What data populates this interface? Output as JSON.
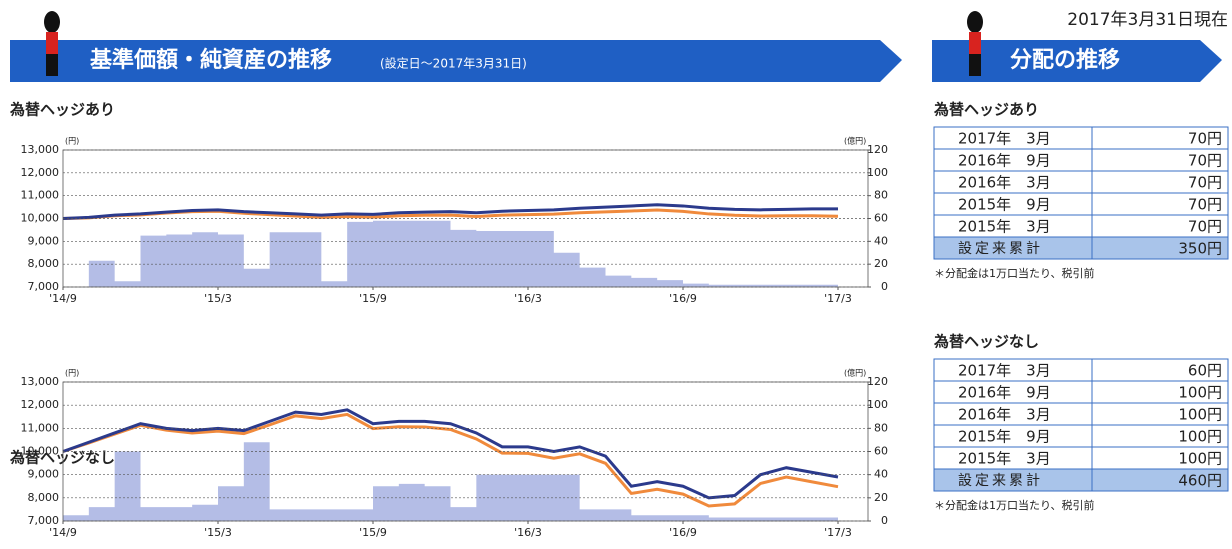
{
  "header": {
    "title": "基準価額・純資産の推移",
    "period": "(設定日～2017年3月31日)",
    "as_of": "2017年3月31日現在",
    "dist_title": "分配の推移"
  },
  "chart_data": [
    {
      "type": "line",
      "title": "為替ヘッジあり",
      "y_unit": "(円)",
      "y2_unit": "(億円)",
      "x": [
        "2014-09",
        "2014-10",
        "2014-11",
        "2014-12",
        "2015-01",
        "2015-02",
        "2015-03",
        "2015-04",
        "2015-05",
        "2015-06",
        "2015-07",
        "2015-08",
        "2015-09",
        "2015-10",
        "2015-11",
        "2015-12",
        "2016-01",
        "2016-02",
        "2016-03",
        "2016-04",
        "2016-05",
        "2016-06",
        "2016-07",
        "2016-08",
        "2016-09",
        "2016-10",
        "2016-11",
        "2016-12",
        "2017-01",
        "2017-02",
        "2017-03"
      ],
      "xticks": [
        {
          "value": "2014-09",
          "label": "'14/9"
        },
        {
          "value": "2015-03",
          "label": "'15/3"
        },
        {
          "value": "2015-09",
          "label": "'15/9"
        },
        {
          "value": "2016-03",
          "label": "'16/3"
        },
        {
          "value": "2016-09",
          "label": "'16/9"
        },
        {
          "value": "2017-03",
          "label": "'17/3"
        }
      ],
      "ylim": [
        7000,
        13000
      ],
      "yticks": [
        {
          "value": 7000,
          "label": "7,000"
        },
        {
          "value": 8000,
          "label": "8,000"
        },
        {
          "value": 9000,
          "label": "9,000"
        },
        {
          "value": 10000,
          "label": "10,000"
        },
        {
          "value": 11000,
          "label": "11,000"
        },
        {
          "value": 12000,
          "label": "12,000"
        },
        {
          "value": 13000,
          "label": "13,000"
        }
      ],
      "y2lim": [
        0,
        120
      ],
      "y2ticks": [
        0,
        20,
        40,
        60,
        80,
        100,
        120
      ],
      "grid": true,
      "series": [
        {
          "color": "#b4bde6",
          "axis": "y2",
          "values": [
            0,
            23,
            5,
            45,
            46,
            48,
            46,
            16,
            48,
            48,
            5,
            57,
            58,
            58,
            58,
            50,
            49,
            49,
            49,
            30,
            17,
            10,
            8,
            6,
            3,
            2,
            2,
            2,
            2,
            2,
            2
          ]
        },
        {
          "color": "#f08a3c",
          "values": [
            10000,
            10030,
            10120,
            10160,
            10240,
            10300,
            10320,
            10230,
            10170,
            10110,
            10050,
            10090,
            10060,
            10120,
            10140,
            10150,
            10090,
            10150,
            10170,
            10190,
            10250,
            10290,
            10330,
            10370,
            10310,
            10200,
            10140,
            10110,
            10120,
            10120,
            10100
          ]
        },
        {
          "color": "#2b3a8c",
          "values": [
            10000,
            10050,
            10150,
            10200,
            10280,
            10350,
            10380,
            10300,
            10250,
            10200,
            10150,
            10200,
            10180,
            10250,
            10280,
            10300,
            10250,
            10320,
            10350,
            10380,
            10450,
            10500,
            10550,
            10600,
            10550,
            10450,
            10400,
            10380,
            10400,
            10420,
            10420
          ]
        }
      ]
    },
    {
      "type": "line",
      "title": "為替ヘッジなし",
      "y_unit": "(円)",
      "y2_unit": "(億円)",
      "x": [
        "2014-09",
        "2014-10",
        "2014-11",
        "2014-12",
        "2015-01",
        "2015-02",
        "2015-03",
        "2015-04",
        "2015-05",
        "2015-06",
        "2015-07",
        "2015-08",
        "2015-09",
        "2015-10",
        "2015-11",
        "2015-12",
        "2016-01",
        "2016-02",
        "2016-03",
        "2016-04",
        "2016-05",
        "2016-06",
        "2016-07",
        "2016-08",
        "2016-09",
        "2016-10",
        "2016-11",
        "2016-12",
        "2017-01",
        "2017-02",
        "2017-03"
      ],
      "xticks": [
        {
          "value": "2014-09",
          "label": "'14/9"
        },
        {
          "value": "2015-03",
          "label": "'15/3"
        },
        {
          "value": "2015-09",
          "label": "'15/9"
        },
        {
          "value": "2016-03",
          "label": "'16/3"
        },
        {
          "value": "2016-09",
          "label": "'16/9"
        },
        {
          "value": "2017-03",
          "label": "'17/3"
        }
      ],
      "ylim": [
        7000,
        13000
      ],
      "yticks": [
        {
          "value": 7000,
          "label": "7,000"
        },
        {
          "value": 8000,
          "label": "8,000"
        },
        {
          "value": 9000,
          "label": "9,000"
        },
        {
          "value": 10000,
          "label": "10,000"
        },
        {
          "value": 11000,
          "label": "11,000"
        },
        {
          "value": 12000,
          "label": "12,000"
        },
        {
          "value": 13000,
          "label": "13,000"
        }
      ],
      "y2lim": [
        0,
        120
      ],
      "y2ticks": [
        0,
        20,
        40,
        60,
        80,
        100,
        120
      ],
      "grid": true,
      "series": [
        {
          "color": "#b4bde6",
          "axis": "y2",
          "values": [
            5,
            12,
            60,
            12,
            12,
            14,
            30,
            68,
            10,
            10,
            10,
            10,
            30,
            32,
            30,
            12,
            40,
            40,
            40,
            40,
            10,
            10,
            5,
            5,
            5,
            3,
            3,
            3,
            3,
            3,
            3
          ]
        },
        {
          "color": "#f08a3c",
          "values": [
            10000,
            10370,
            10750,
            11130,
            10920,
            10800,
            10880,
            10770,
            11150,
            11540,
            11420,
            11600,
            10990,
            11070,
            11060,
            10950,
            10540,
            9930,
            9920,
            9710,
            9900,
            9490,
            8190,
            8370,
            8160,
            7650,
            7740,
            8620,
            8900,
            8690,
            8480
          ]
        },
        {
          "color": "#2b3a8c",
          "values": [
            10000,
            10400,
            10800,
            11200,
            11000,
            10900,
            11000,
            10900,
            11300,
            11700,
            11600,
            11800,
            11200,
            11300,
            11300,
            11200,
            10800,
            10200,
            10200,
            10000,
            10200,
            9800,
            8500,
            8700,
            8500,
            8000,
            8100,
            9000,
            9300,
            9100,
            8900
          ]
        }
      ]
    }
  ],
  "tables": [
    {
      "title": "為替ヘッジあり",
      "rows": [
        [
          "2017年　3月",
          "70円"
        ],
        [
          "2016年　9月",
          "70円"
        ],
        [
          "2016年　3月",
          "70円"
        ],
        [
          "2015年　9月",
          "70円"
        ],
        [
          "2015年　3月",
          "70円"
        ]
      ],
      "total": [
        "設定来累計",
        "350円"
      ],
      "note": "＊分配金は1万口当たり、税引前"
    },
    {
      "title": "為替ヘッジなし",
      "rows": [
        [
          "2017年　3月",
          "60円"
        ],
        [
          "2016年　9月",
          "100円"
        ],
        [
          "2016年　3月",
          "100円"
        ],
        [
          "2015年　9月",
          "100円"
        ],
        [
          "2015年　3月",
          "100円"
        ]
      ],
      "total": [
        "設定来累計",
        "460円"
      ],
      "note": "＊分配金は1万口当たり、税引前"
    }
  ]
}
